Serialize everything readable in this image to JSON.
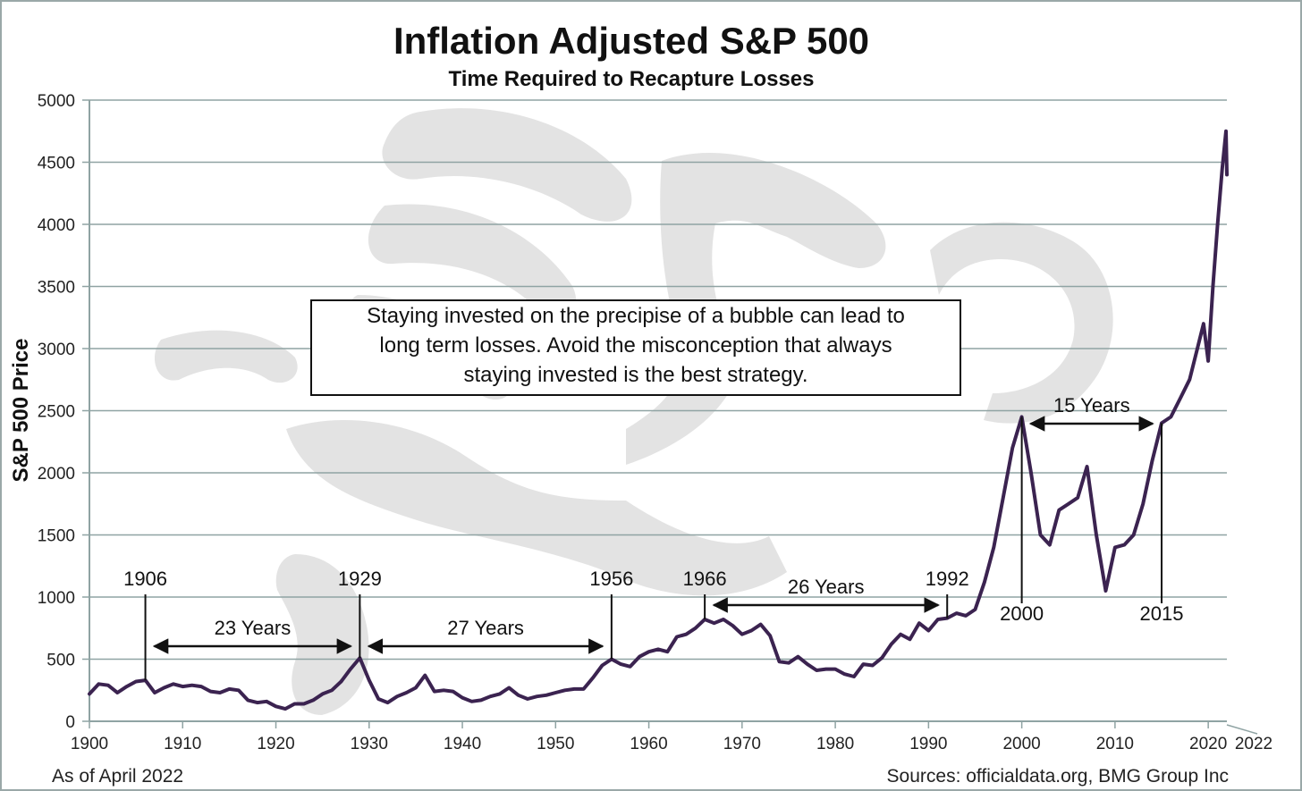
{
  "footer": {
    "left": "As of April 2022",
    "right": "Sources: officialdata.org, BMG Group Inc"
  },
  "callout": {
    "lines": [
      "Staying invested on the precipise of a bubble can lead to",
      "long term losses.  Avoid the misconception that always",
      "staying invested is the best strategy."
    ]
  },
  "colors": {
    "line": "#3b2350",
    "grid": "#8fa3a3",
    "watermark": "#e2e2e2"
  },
  "chart_data": {
    "type": "line",
    "title": "Inflation Adjusted S&P 500",
    "subtitle": "Time Required to Recapture Losses",
    "ylabel": "S&P 500 Price",
    "xlabel": "",
    "xlim": [
      1900,
      2022
    ],
    "ylim": [
      0,
      5000
    ],
    "grid": true,
    "x_ticks": [
      1900,
      1910,
      1920,
      1930,
      1940,
      1950,
      1960,
      1970,
      1980,
      1990,
      2000,
      2010,
      2020
    ],
    "x_tick_labels": [
      "1900",
      "1910",
      "1920",
      "1930",
      "1940",
      "1950",
      "1960",
      "1970",
      "1980",
      "1990",
      "2000",
      "2010",
      "2020"
    ],
    "x_end_label": "2022",
    "y_ticks": [
      0,
      500,
      1000,
      1500,
      2000,
      2500,
      3000,
      3500,
      4000,
      4500,
      5000
    ],
    "y_tick_labels": [
      "0",
      "500",
      "1000",
      "1500",
      "2000",
      "2500",
      "3000",
      "3500",
      "4000",
      "4500",
      "5000"
    ],
    "series": [
      {
        "x": [
          1900,
          1901,
          1902,
          1903,
          1904,
          1905,
          1906,
          1907,
          1908,
          1909,
          1910,
          1911,
          1912,
          1913,
          1914,
          1915,
          1916,
          1917,
          1918,
          1919,
          1920,
          1921,
          1922,
          1923,
          1924,
          1925,
          1926,
          1927,
          1928,
          1929,
          1930,
          1931,
          1932,
          1933,
          1934,
          1935,
          1936,
          1937,
          1938,
          1939,
          1940,
          1941,
          1942,
          1943,
          1944,
          1945,
          1946,
          1947,
          1948,
          1949,
          1950,
          1951,
          1952,
          1953,
          1954,
          1955,
          1956,
          1957,
          1958,
          1959,
          1960,
          1961,
          1962,
          1963,
          1964,
          1965,
          1966,
          1967,
          1968,
          1969,
          1970,
          1971,
          1972,
          1973,
          1974,
          1975,
          1976,
          1977,
          1978,
          1979,
          1980,
          1981,
          1982,
          1983,
          1984,
          1985,
          1986,
          1987,
          1988,
          1989,
          1990,
          1991,
          1992,
          1993,
          1994,
          1995,
          1996,
          1997,
          1998,
          1999,
          2000,
          2001,
          2002,
          2003,
          2004,
          2005,
          2006,
          2007,
          2008,
          2009,
          2010,
          2011,
          2012,
          2013,
          2014,
          2015,
          2016,
          2017,
          2018,
          2019,
          2019.5,
          2020,
          2020.5,
          2021,
          2021.5,
          2021.9,
          2022
        ],
        "y": [
          220,
          300,
          290,
          230,
          280,
          320,
          330,
          230,
          270,
          300,
          280,
          290,
          280,
          240,
          230,
          260,
          250,
          170,
          150,
          160,
          120,
          100,
          140,
          140,
          170,
          220,
          250,
          320,
          420,
          510,
          330,
          180,
          150,
          200,
          230,
          270,
          370,
          240,
          250,
          240,
          190,
          160,
          170,
          200,
          220,
          270,
          210,
          180,
          200,
          210,
          230,
          250,
          260,
          260,
          350,
          450,
          500,
          460,
          440,
          520,
          560,
          580,
          560,
          680,
          700,
          750,
          820,
          790,
          820,
          770,
          700,
          730,
          780,
          690,
          480,
          470,
          520,
          460,
          410,
          420,
          420,
          380,
          360,
          460,
          450,
          510,
          620,
          700,
          660,
          790,
          730,
          820,
          830,
          870,
          850,
          900,
          1120,
          1400,
          1800,
          2200,
          2450,
          2000,
          1500,
          1420,
          1700,
          1750,
          1800,
          2050,
          1500,
          1050,
          1400,
          1420,
          1500,
          1750,
          2100,
          2400,
          2450,
          2600,
          2750,
          3050,
          3200,
          2900,
          3500,
          4000,
          4450,
          4750,
          4400
        ]
      }
    ],
    "annotations": [
      {
        "year": 1906,
        "label": "1906"
      },
      {
        "year": 1929,
        "label": "1929"
      },
      {
        "year": 1956,
        "label": "1956"
      },
      {
        "year": 1966,
        "label": "1966"
      },
      {
        "year": 1992,
        "label": "1992"
      },
      {
        "year": 2000,
        "label": "2000"
      },
      {
        "year": 2015,
        "label": "2015"
      }
    ],
    "spans": [
      {
        "from": 1906,
        "to": 1929,
        "label": "23 Years"
      },
      {
        "from": 1929,
        "to": 1956,
        "label": "27 Years"
      },
      {
        "from": 1966,
        "to": 1992,
        "label": "26 Years"
      },
      {
        "from": 2000,
        "to": 2015,
        "label": "15 Years"
      }
    ]
  }
}
